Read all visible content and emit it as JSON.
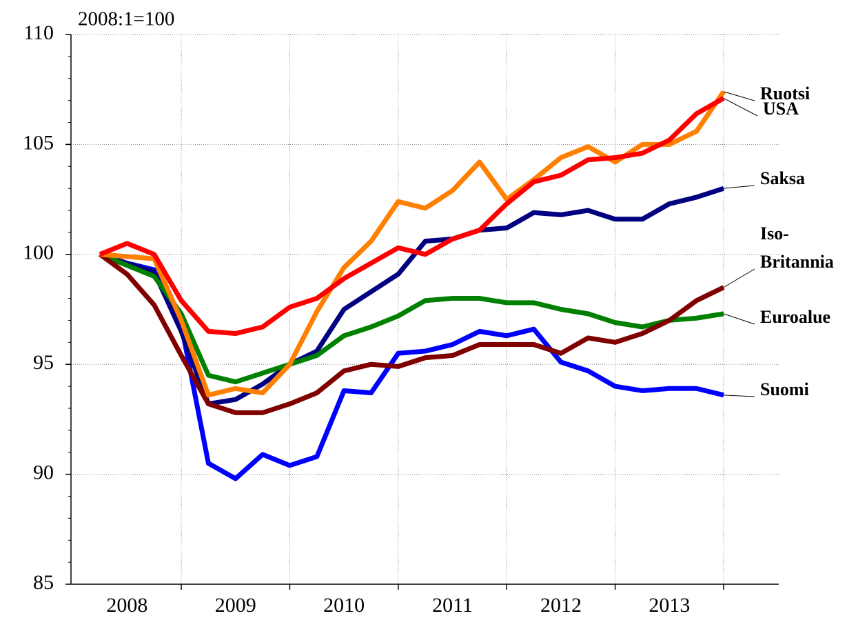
{
  "chart_data": {
    "type": "line",
    "title": "2008:1=100",
    "categories": [
      null,
      "2008",
      null,
      null,
      null,
      "2009",
      null,
      null,
      null,
      "2010",
      null,
      null,
      null,
      "2011",
      null,
      null,
      null,
      "2012",
      null,
      null,
      null,
      "2013",
      null,
      null
    ],
    "ylim": [
      85,
      110
    ],
    "yticks": [
      85,
      90,
      95,
      100,
      105,
      110
    ],
    "grid": true,
    "series": [
      {
        "name": "Suomi",
        "color": "#0000ff",
        "values": [
          100,
          99.6,
          99.3,
          96.8,
          90.5,
          89.8,
          90.9,
          90.4,
          90.8,
          93.8,
          93.7,
          95.5,
          95.6,
          95.9,
          96.5,
          96.3,
          96.6,
          95.1,
          94.7,
          94.0,
          93.8,
          93.9,
          93.9,
          93.6
        ]
      },
      {
        "name": "Saksa",
        "color": "#000080",
        "values": [
          100,
          99.6,
          99.2,
          96.5,
          93.2,
          93.4,
          94.1,
          95.0,
          95.6,
          97.5,
          98.3,
          99.1,
          100.6,
          100.7,
          101.1,
          101.2,
          101.9,
          101.8,
          102.0,
          101.6,
          101.6,
          102.3,
          102.6,
          103.0
        ]
      },
      {
        "name": "Euroalue",
        "color": "#008000",
        "values": [
          100,
          99.5,
          99.0,
          97.3,
          94.5,
          94.2,
          94.6,
          95.0,
          95.4,
          96.3,
          96.7,
          97.2,
          97.9,
          98.0,
          98.0,
          97.8,
          97.8,
          97.5,
          97.3,
          96.9,
          96.7,
          97.0,
          97.1,
          97.3
        ]
      },
      {
        "name": "Iso-Britannia",
        "color": "#800000",
        "values": [
          100,
          99.1,
          97.7,
          95.4,
          93.2,
          92.8,
          92.8,
          93.2,
          93.7,
          94.7,
          95.0,
          94.9,
          95.3,
          95.4,
          95.9,
          95.9,
          95.9,
          95.5,
          96.2,
          96.0,
          96.4,
          97.0,
          97.9,
          98.5
        ]
      },
      {
        "name": "Ruotsi",
        "color": "#ff7f00",
        "values": [
          100,
          99.9,
          99.8,
          97.0,
          93.6,
          93.9,
          93.7,
          95.0,
          97.4,
          99.4,
          100.6,
          102.4,
          102.1,
          102.9,
          104.2,
          102.5,
          103.4,
          104.4,
          104.9,
          104.2,
          105.0,
          105.0,
          105.6,
          107.4
        ]
      },
      {
        "name": "USA",
        "color": "#ff0000",
        "values": [
          100,
          100.5,
          100.0,
          97.9,
          96.5,
          96.4,
          96.7,
          97.6,
          98.0,
          98.9,
          99.6,
          100.3,
          100.0,
          100.7,
          101.1,
          102.3,
          103.3,
          103.6,
          104.3,
          104.4,
          104.6,
          105.2,
          106.4,
          107.1
        ]
      }
    ]
  }
}
